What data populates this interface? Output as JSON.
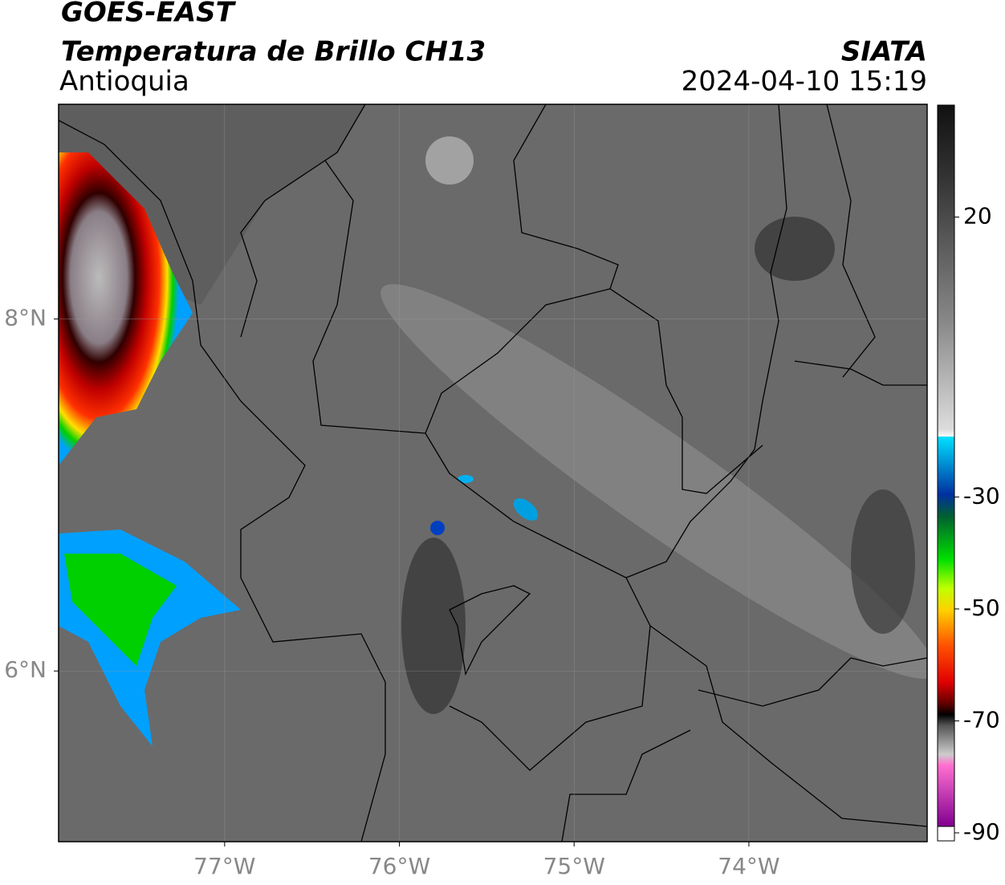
{
  "header": {
    "title": "GOES-EAST",
    "subtitle": "Temperatura de Brillo CH13",
    "region": "Antioquia",
    "source": "SIATA",
    "datetime": "2024-04-10 15:19"
  },
  "map": {
    "xlim": [
      -77.95,
      -72.98
    ],
    "ylim": [
      5.03,
      9.22
    ],
    "lon_ticks": [
      {
        "value": -77,
        "label": "77°W"
      },
      {
        "value": -76,
        "label": "76°W"
      },
      {
        "value": -75,
        "label": "75°W"
      },
      {
        "value": -74,
        "label": "74°W"
      }
    ],
    "lat_ticks": [
      {
        "value": 8,
        "label": "8°N"
      },
      {
        "value": 6,
        "label": "6°N"
      }
    ]
  },
  "colorbar": {
    "lim": [
      -90,
      40
    ],
    "ticks": [
      20,
      -30,
      -50,
      -70,
      -90
    ]
  }
}
